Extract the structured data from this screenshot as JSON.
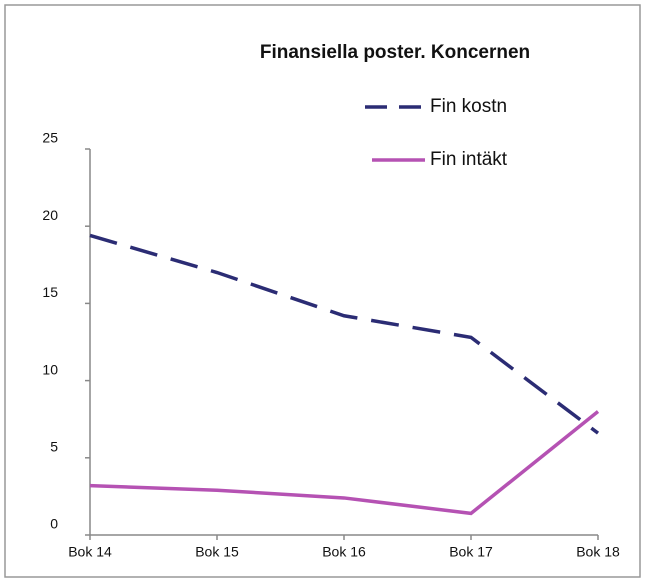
{
  "chart_data": {
    "type": "line",
    "title": "Finansiella poster. Koncernen",
    "categories": [
      "Bok 14",
      "Bok 15",
      "Bok 16",
      "Bok 17",
      "Bok 18"
    ],
    "series": [
      {
        "name": "Fin kostn",
        "color": "#2b2c74",
        "dashed": true,
        "values": [
          19.4,
          17.0,
          14.2,
          12.8,
          6.6
        ]
      },
      {
        "name": "Fin intäkt",
        "color": "#b552b3",
        "dashed": false,
        "values": [
          3.2,
          2.9,
          2.4,
          1.4,
          8.0
        ]
      }
    ],
    "ylim": [
      0,
      25
    ],
    "yticks": [
      0,
      5,
      10,
      15,
      20,
      25
    ],
    "grid": false
  }
}
